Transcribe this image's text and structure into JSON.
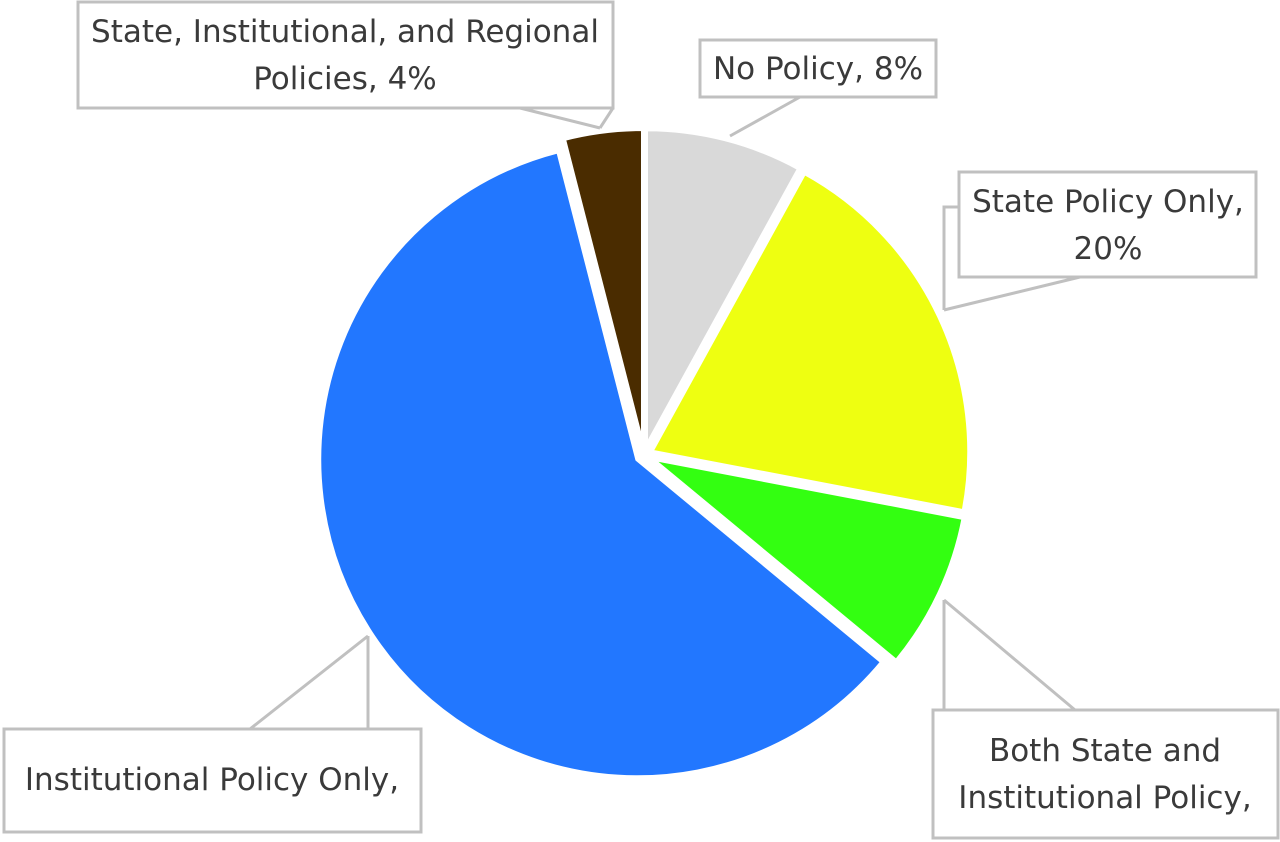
{
  "chart_data": {
    "type": "pie",
    "title": "",
    "slices": [
      {
        "name": "No Policy",
        "value": 8,
        "label_lines": [
          "No Policy, 8%"
        ],
        "color": "#d9d9d9"
      },
      {
        "name": "State Policy Only",
        "value": 20,
        "label_lines": [
          "State Policy Only,",
          "20%"
        ],
        "color": "#eeff11"
      },
      {
        "name": "Both State and Institutional Policy",
        "value": 8,
        "label_lines": [
          "Both State and",
          "Institutional Policy,"
        ],
        "color": "#33ff11"
      },
      {
        "name": "Institutional Policy Only",
        "value": 60,
        "label_lines": [
          "Institutional Policy Only,"
        ],
        "color": "#2277ff"
      },
      {
        "name": "State, Institutional, and Regional Policies",
        "value": 4,
        "label_lines": [
          "State, Institutional, and Regional",
          "Policies, 4%"
        ],
        "color": "#4a2c00"
      }
    ],
    "start_angle_deg": 0,
    "direction": "clockwise",
    "legend": "none",
    "label_style": "callout boxes with leader lines",
    "border_color": "#c0c0c0"
  }
}
